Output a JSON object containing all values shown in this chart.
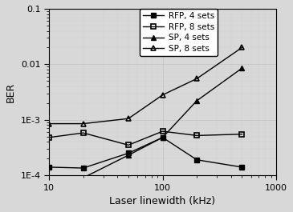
{
  "title": "",
  "xlabel": "Laser linewidth (kHz)",
  "ylabel": "BER",
  "xlim": [
    10,
    1000
  ],
  "ylim": [
    0.0001,
    0.1
  ],
  "series": {
    "RFP_4sets": {
      "x": [
        10,
        20,
        50,
        100,
        200,
        500
      ],
      "y": [
        0.00014,
        0.000135,
        0.00025,
        0.00048,
        0.00019,
        0.00014
      ],
      "label": "RFP, 4 sets",
      "marker": "s",
      "fillstyle": "full",
      "linestyle": "-"
    },
    "RFP_8sets": {
      "x": [
        10,
        20,
        50,
        100,
        200,
        500
      ],
      "y": [
        0.00048,
        0.00058,
        0.00035,
        0.00062,
        0.00052,
        0.00055
      ],
      "label": "RFP, 8 sets",
      "marker": "s",
      "fillstyle": "none",
      "linestyle": "-"
    },
    "SP_4sets": {
      "x": [
        10,
        20,
        50,
        100,
        200,
        500
      ],
      "y": [
        9e-05,
        9e-05,
        0.00023,
        0.00048,
        0.0022,
        0.0085
      ],
      "label": "SP, 4 sets",
      "marker": "^",
      "fillstyle": "full",
      "linestyle": "-"
    },
    "SP_8sets": {
      "x": [
        10,
        20,
        50,
        100,
        200,
        500
      ],
      "y": [
        0.00085,
        0.00085,
        0.00105,
        0.0028,
        0.0055,
        0.02
      ],
      "label": "SP, 8 sets",
      "marker": "^",
      "fillstyle": "none",
      "linestyle": "-"
    }
  },
  "plot_bg_color": "#d8d8d8",
  "fig_bg_color": "#d8d8d8",
  "dot_color": "#ffffff",
  "grid_color": "#bcbcbc",
  "legend_fontsize": 7.5,
  "axis_label_fontsize": 9,
  "tick_fontsize": 8,
  "ytick_labels": [
    "1E-4",
    "1E-3",
    "0.01",
    "0.1"
  ],
  "ytick_vals": [
    0.0001,
    0.001,
    0.01,
    0.1
  ],
  "xtick_labels": [
    "10",
    "100",
    "1000"
  ],
  "xtick_vals": [
    10,
    100,
    1000
  ]
}
